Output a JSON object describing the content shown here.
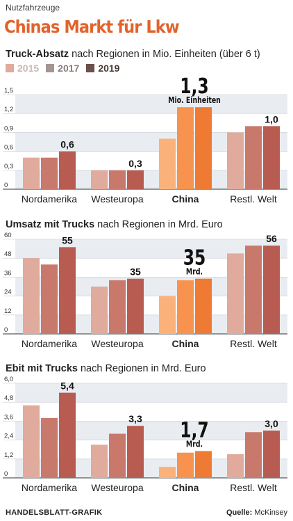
{
  "kicker": "Nutzfahrzeuge",
  "title": "Chinas Markt für Lkw",
  "legend": [
    {
      "label": "2015",
      "color": "#e0aa9c"
    },
    {
      "label": "2017",
      "color": "#c9796c"
    },
    {
      "label": "2019",
      "color": "#b85c51"
    }
  ],
  "china_colors": [
    "#fbb27a",
    "#f7934e",
    "#ef7a33"
  ],
  "footer": {
    "left": "HANDELSBLATT-GRAFIK",
    "source_label": "Quelle:",
    "source": "McKinsey"
  },
  "chart_data": [
    {
      "type": "bar",
      "title_bold": "Truck-Absatz",
      "title_rest": " nach Regionen in Mio. Einheiten (über 6 t)",
      "categories": [
        "Nordamerika",
        "Westeuropa",
        "China",
        "Restl. Welt"
      ],
      "highlight": "China",
      "series": [
        {
          "name": "2015",
          "values": [
            0.5,
            0.3,
            0.8,
            0.9
          ]
        },
        {
          "name": "2017",
          "values": [
            0.5,
            0.3,
            1.3,
            1.0
          ]
        },
        {
          "name": "2019",
          "values": [
            0.6,
            0.3,
            1.3,
            1.0
          ]
        }
      ],
      "labels": [
        "0,6",
        "0,3",
        "1,3",
        "1,0"
      ],
      "highlight_unit": "Mio. Einheiten",
      "yticks": [
        "0",
        "0,3",
        "0,6",
        "0,9",
        "1,2",
        "1,5"
      ],
      "ylim": [
        0,
        1.5
      ]
    },
    {
      "type": "bar",
      "title_bold": "Umsatz mit Trucks",
      "title_rest": " nach Regionen in Mrd. Euro",
      "categories": [
        "Nordamerika",
        "Westeuropa",
        "China",
        "Restl. Welt"
      ],
      "highlight": "China",
      "series": [
        {
          "name": "2015",
          "values": [
            48,
            30,
            24,
            51
          ]
        },
        {
          "name": "2017",
          "values": [
            44,
            34,
            34,
            56
          ]
        },
        {
          "name": "2019",
          "values": [
            55,
            35,
            35,
            56
          ]
        }
      ],
      "labels": [
        "55",
        "35",
        "35",
        "56"
      ],
      "highlight_unit": "Mrd.",
      "yticks": [
        "0",
        "12",
        "24",
        "36",
        "48",
        "60"
      ],
      "ylim": [
        0,
        60
      ]
    },
    {
      "type": "bar",
      "title_bold": "Ebit mit Trucks",
      "title_rest": " nach Regionen in Mrd. Euro",
      "categories": [
        "Nordamerika",
        "Westeuropa",
        "China",
        "Restl. Welt"
      ],
      "highlight": "China",
      "series": [
        {
          "name": "2015",
          "values": [
            4.6,
            2.1,
            0.7,
            1.5
          ]
        },
        {
          "name": "2017",
          "values": [
            3.8,
            2.8,
            1.6,
            2.9
          ]
        },
        {
          "name": "2019",
          "values": [
            5.4,
            3.3,
            1.7,
            3.0
          ]
        }
      ],
      "labels": [
        "5,4",
        "3,3",
        "1,7",
        "3,0"
      ],
      "highlight_unit": "Mrd.",
      "yticks": [
        "0",
        "1,2",
        "2,4",
        "3,6",
        "4,8",
        "6,0"
      ],
      "ylim": [
        0,
        6
      ]
    }
  ]
}
